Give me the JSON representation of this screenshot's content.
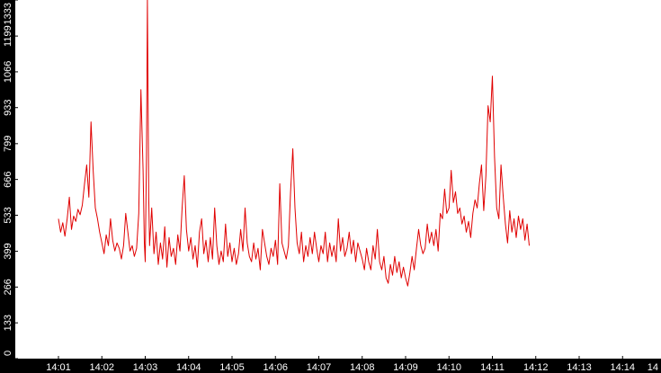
{
  "chart_data": {
    "type": "line",
    "title": "",
    "xlabel": "",
    "ylabel": "",
    "ylim": [
      0,
      1333
    ],
    "y_ticks": [
      "0",
      "133",
      "266",
      "399",
      "533",
      "666",
      "799",
      "933",
      "1066",
      "1199",
      "1333"
    ],
    "x_ticks": [
      "14:01",
      "14:02",
      "14:03",
      "14:04",
      "14:05",
      "14:06",
      "14:07",
      "14:08",
      "14:09",
      "14:10",
      "14:11",
      "14:12",
      "14:13",
      "14:14",
      "14"
    ],
    "grid": false,
    "series": [
      {
        "color": "#e00000",
        "points": [
          [
            0.0,
            520
          ],
          [
            0.05,
            470
          ],
          [
            0.1,
            505
          ],
          [
            0.15,
            455
          ],
          [
            0.2,
            520
          ],
          [
            0.25,
            600
          ],
          [
            0.3,
            480
          ],
          [
            0.35,
            530
          ],
          [
            0.4,
            510
          ],
          [
            0.45,
            555
          ],
          [
            0.5,
            535
          ],
          [
            0.55,
            570
          ],
          [
            0.6,
            650
          ],
          [
            0.65,
            720
          ],
          [
            0.7,
            600
          ],
          [
            0.75,
            880
          ],
          [
            0.8,
            700
          ],
          [
            0.85,
            560
          ],
          [
            0.9,
            520
          ],
          [
            0.95,
            470
          ],
          [
            1.0,
            430
          ],
          [
            1.05,
            390
          ],
          [
            1.1,
            460
          ],
          [
            1.15,
            420
          ],
          [
            1.2,
            520
          ],
          [
            1.25,
            440
          ],
          [
            1.3,
            400
          ],
          [
            1.35,
            430
          ],
          [
            1.4,
            410
          ],
          [
            1.45,
            370
          ],
          [
            1.5,
            420
          ],
          [
            1.55,
            540
          ],
          [
            1.6,
            470
          ],
          [
            1.65,
            400
          ],
          [
            1.7,
            420
          ],
          [
            1.75,
            380
          ],
          [
            1.8,
            410
          ],
          [
            1.85,
            540
          ],
          [
            1.9,
            1000
          ],
          [
            1.95,
            700
          ],
          [
            1.98,
            430
          ],
          [
            2.0,
            360
          ],
          [
            2.03,
            760
          ],
          [
            2.05,
            1333
          ],
          [
            2.08,
            600
          ],
          [
            2.1,
            420
          ],
          [
            2.15,
            560
          ],
          [
            2.2,
            390
          ],
          [
            2.25,
            470
          ],
          [
            2.3,
            350
          ],
          [
            2.35,
            430
          ],
          [
            2.4,
            370
          ],
          [
            2.45,
            490
          ],
          [
            2.5,
            340
          ],
          [
            2.55,
            450
          ],
          [
            2.6,
            380
          ],
          [
            2.65,
            410
          ],
          [
            2.7,
            350
          ],
          [
            2.75,
            460
          ],
          [
            2.8,
            400
          ],
          [
            2.85,
            560
          ],
          [
            2.9,
            680
          ],
          [
            2.95,
            480
          ],
          [
            3.0,
            400
          ],
          [
            3.05,
            450
          ],
          [
            3.1,
            370
          ],
          [
            3.15,
            420
          ],
          [
            3.2,
            340
          ],
          [
            3.25,
            470
          ],
          [
            3.3,
            520
          ],
          [
            3.35,
            390
          ],
          [
            3.4,
            440
          ],
          [
            3.45,
            360
          ],
          [
            3.5,
            450
          ],
          [
            3.55,
            370
          ],
          [
            3.6,
            560
          ],
          [
            3.65,
            420
          ],
          [
            3.7,
            350
          ],
          [
            3.75,
            400
          ],
          [
            3.8,
            360
          ],
          [
            3.85,
            500
          ],
          [
            3.9,
            380
          ],
          [
            3.95,
            430
          ],
          [
            4.0,
            360
          ],
          [
            4.05,
            410
          ],
          [
            4.1,
            350
          ],
          [
            4.15,
            390
          ],
          [
            4.2,
            480
          ],
          [
            4.25,
            400
          ],
          [
            4.3,
            560
          ],
          [
            4.35,
            430
          ],
          [
            4.4,
            380
          ],
          [
            4.45,
            360
          ],
          [
            4.5,
            430
          ],
          [
            4.55,
            370
          ],
          [
            4.6,
            410
          ],
          [
            4.65,
            330
          ],
          [
            4.7,
            480
          ],
          [
            4.75,
            430
          ],
          [
            4.8,
            380
          ],
          [
            4.85,
            350
          ],
          [
            4.9,
            410
          ],
          [
            4.95,
            380
          ],
          [
            5.0,
            440
          ],
          [
            5.05,
            350
          ],
          [
            5.1,
            650
          ],
          [
            5.15,
            430
          ],
          [
            5.2,
            400
          ],
          [
            5.25,
            370
          ],
          [
            5.3,
            420
          ],
          [
            5.35,
            620
          ],
          [
            5.4,
            780
          ],
          [
            5.45,
            560
          ],
          [
            5.5,
            430
          ],
          [
            5.55,
            390
          ],
          [
            5.6,
            470
          ],
          [
            5.65,
            360
          ],
          [
            5.7,
            420
          ],
          [
            5.75,
            380
          ],
          [
            5.8,
            450
          ],
          [
            5.85,
            390
          ],
          [
            5.9,
            470
          ],
          [
            5.95,
            410
          ],
          [
            6.0,
            360
          ],
          [
            6.05,
            420
          ],
          [
            6.1,
            390
          ],
          [
            6.15,
            470
          ],
          [
            6.2,
            360
          ],
          [
            6.25,
            430
          ],
          [
            6.3,
            380
          ],
          [
            6.35,
            420
          ],
          [
            6.4,
            360
          ],
          [
            6.45,
            520
          ],
          [
            6.5,
            400
          ],
          [
            6.55,
            450
          ],
          [
            6.6,
            380
          ],
          [
            6.65,
            410
          ],
          [
            6.7,
            470
          ],
          [
            6.75,
            390
          ],
          [
            6.8,
            440
          ],
          [
            6.85,
            360
          ],
          [
            6.9,
            430
          ],
          [
            6.95,
            400
          ],
          [
            7.0,
            370
          ],
          [
            7.05,
            330
          ],
          [
            7.1,
            410
          ],
          [
            7.15,
            360
          ],
          [
            7.2,
            330
          ],
          [
            7.25,
            420
          ],
          [
            7.3,
            370
          ],
          [
            7.35,
            480
          ],
          [
            7.4,
            360
          ],
          [
            7.45,
            330
          ],
          [
            7.5,
            380
          ],
          [
            7.55,
            300
          ],
          [
            7.6,
            280
          ],
          [
            7.65,
            350
          ],
          [
            7.7,
            310
          ],
          [
            7.75,
            380
          ],
          [
            7.8,
            320
          ],
          [
            7.85,
            360
          ],
          [
            7.9,
            300
          ],
          [
            7.95,
            340
          ],
          [
            8.0,
            300
          ],
          [
            8.05,
            270
          ],
          [
            8.1,
            320
          ],
          [
            8.15,
            380
          ],
          [
            8.2,
            330
          ],
          [
            8.25,
            410
          ],
          [
            8.3,
            480
          ],
          [
            8.35,
            420
          ],
          [
            8.4,
            390
          ],
          [
            8.45,
            410
          ],
          [
            8.5,
            500
          ],
          [
            8.55,
            430
          ],
          [
            8.6,
            470
          ],
          [
            8.65,
            420
          ],
          [
            8.7,
            480
          ],
          [
            8.75,
            400
          ],
          [
            8.8,
            540
          ],
          [
            8.85,
            520
          ],
          [
            8.9,
            630
          ],
          [
            8.95,
            540
          ],
          [
            9.0,
            560
          ],
          [
            9.05,
            700
          ],
          [
            9.1,
            580
          ],
          [
            9.15,
            620
          ],
          [
            9.2,
            540
          ],
          [
            9.25,
            560
          ],
          [
            9.3,
            500
          ],
          [
            9.35,
            530
          ],
          [
            9.4,
            470
          ],
          [
            9.45,
            510
          ],
          [
            9.5,
            450
          ],
          [
            9.55,
            540
          ],
          [
            9.6,
            590
          ],
          [
            9.65,
            560
          ],
          [
            9.7,
            650
          ],
          [
            9.75,
            720
          ],
          [
            9.8,
            550
          ],
          [
            9.85,
            680
          ],
          [
            9.9,
            940
          ],
          [
            9.95,
            880
          ],
          [
            10.0,
            1050
          ],
          [
            10.05,
            750
          ],
          [
            10.1,
            560
          ],
          [
            10.15,
            520
          ],
          [
            10.2,
            720
          ],
          [
            10.25,
            600
          ],
          [
            10.3,
            500
          ],
          [
            10.35,
            430
          ],
          [
            10.4,
            550
          ],
          [
            10.45,
            470
          ],
          [
            10.5,
            520
          ],
          [
            10.55,
            450
          ],
          [
            10.6,
            530
          ],
          [
            10.65,
            480
          ],
          [
            10.7,
            520
          ],
          [
            10.75,
            440
          ],
          [
            10.8,
            500
          ],
          [
            10.85,
            420
          ]
        ]
      }
    ]
  }
}
